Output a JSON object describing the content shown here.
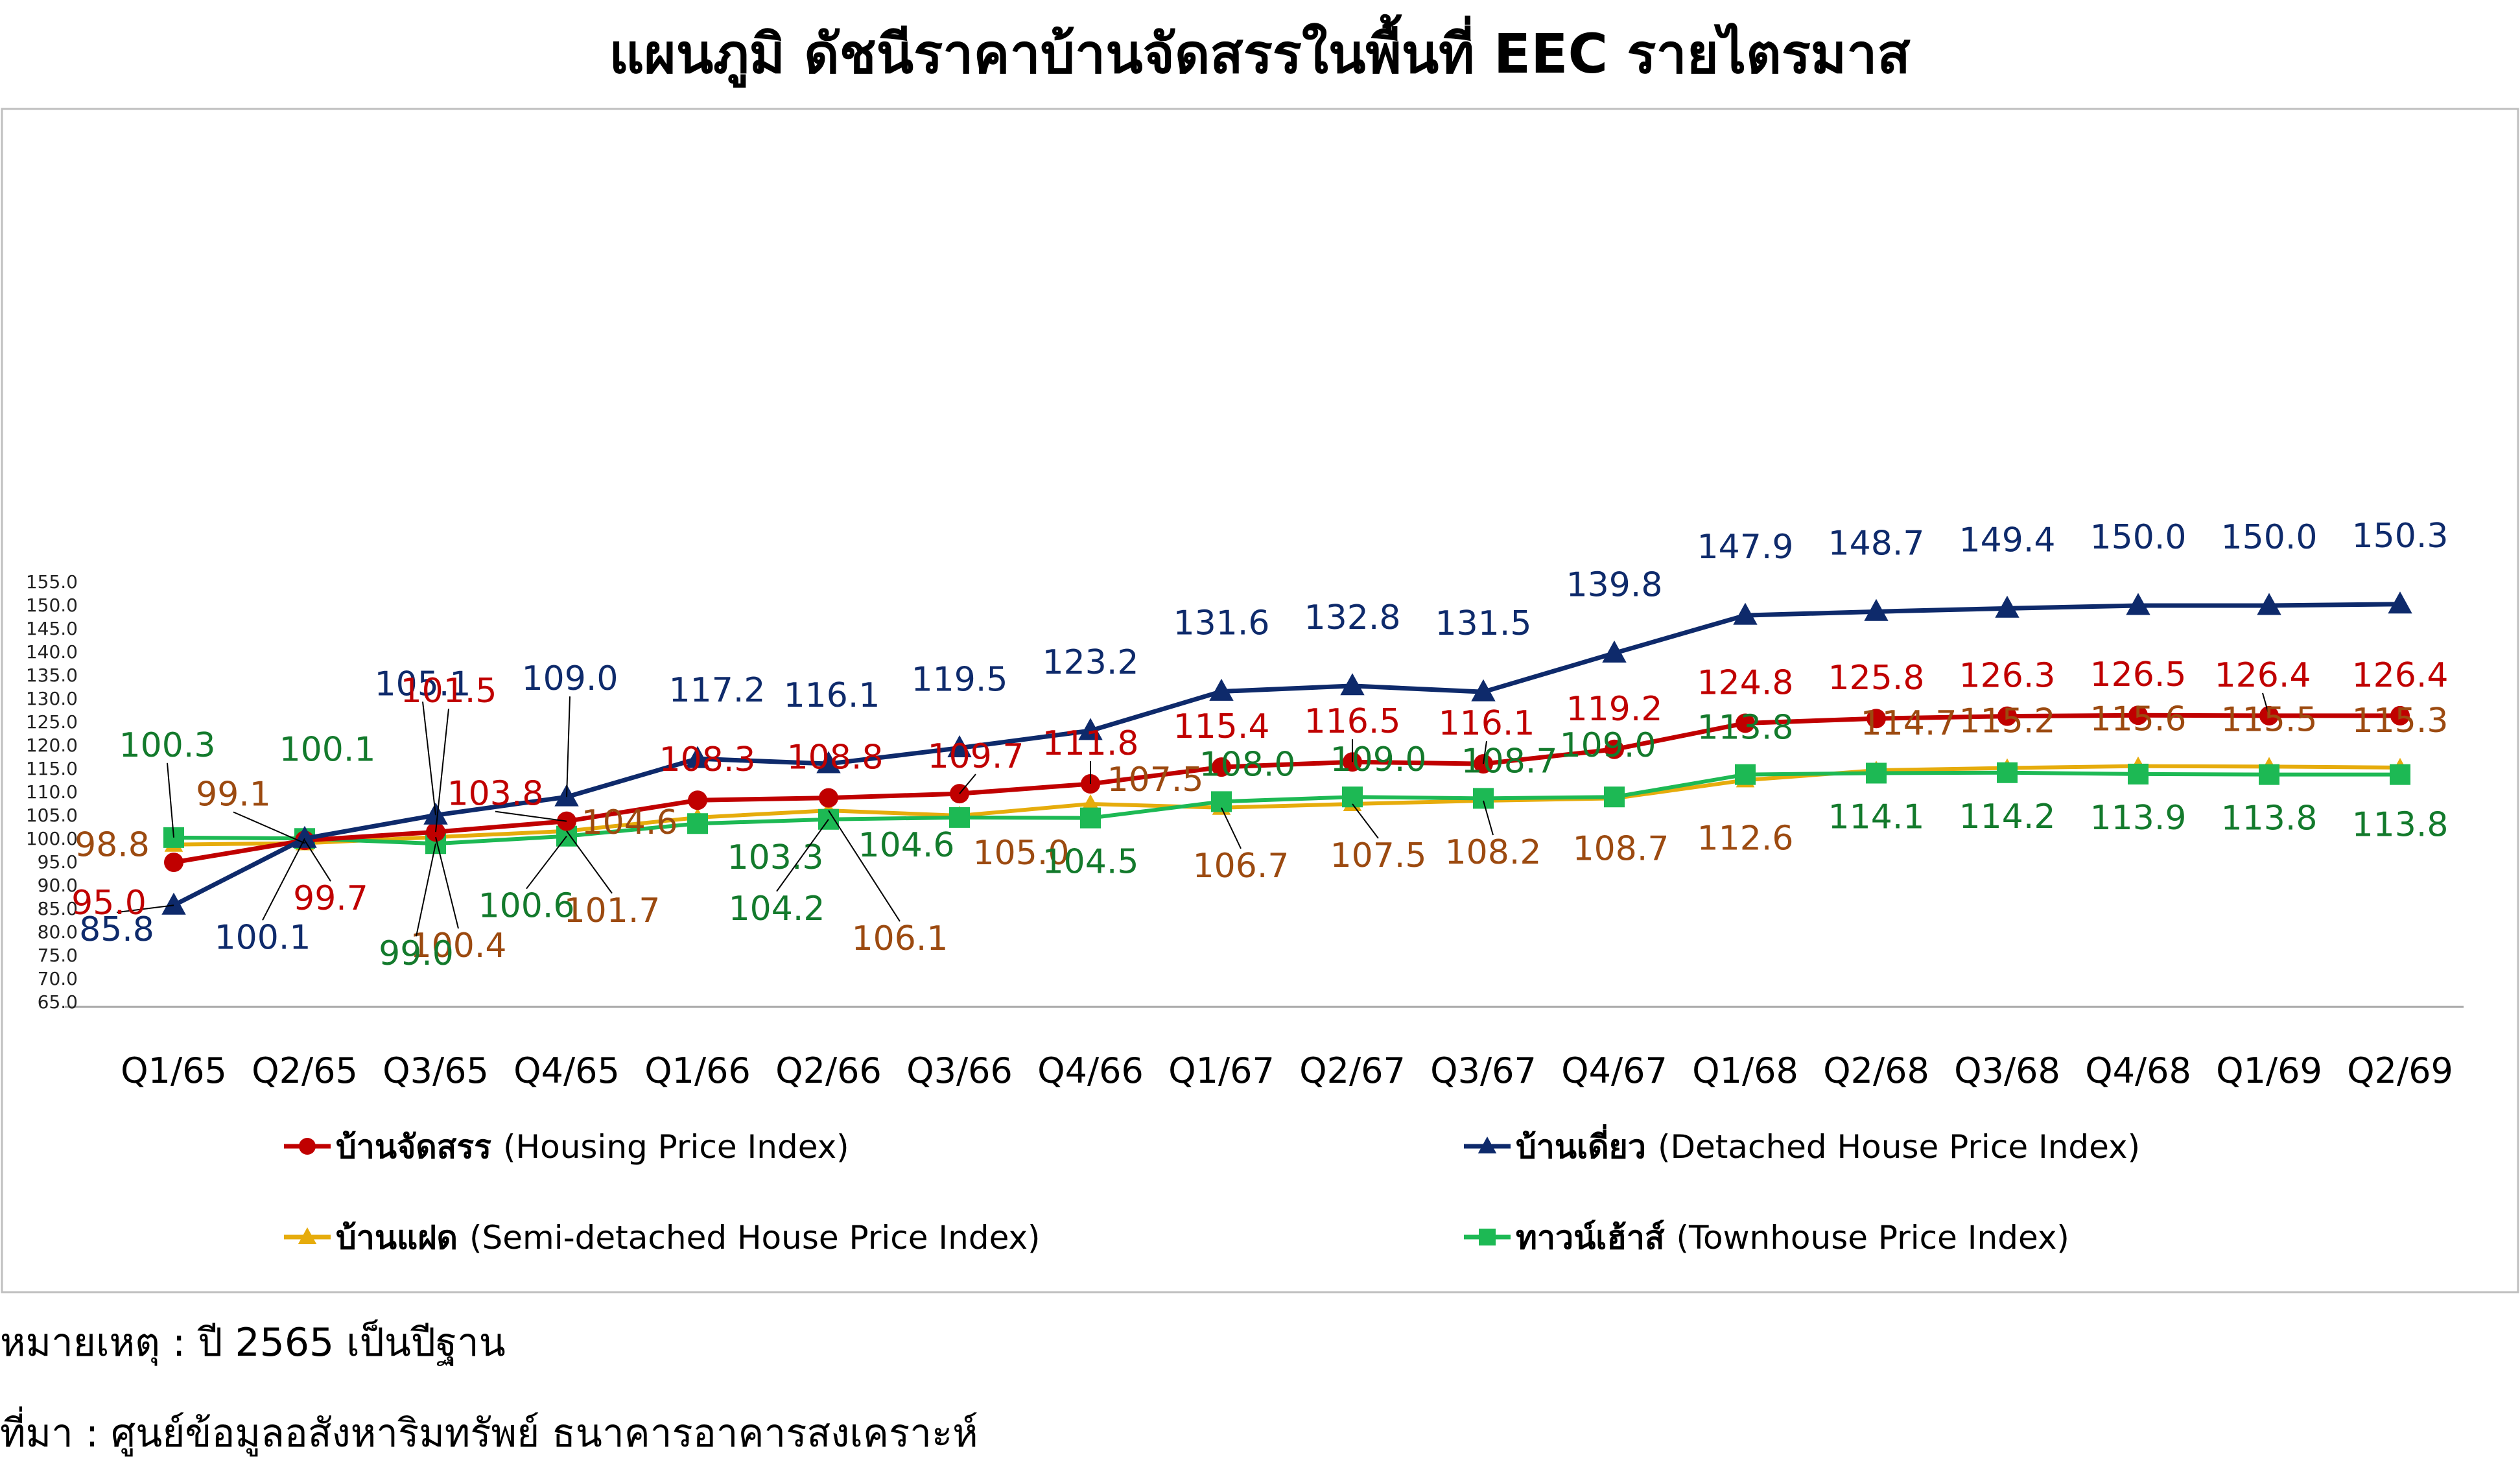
{
  "chart_data": {
    "type": "line",
    "title": "แผนภูมิ ดัชนีราคาบ้านจัดสรรในพื้นที่ EEC รายไตรมาส",
    "categories": [
      "Q1/65",
      "Q2/65",
      "Q3/65",
      "Q4/65",
      "Q1/66",
      "Q2/66",
      "Q3/66",
      "Q4/66",
      "Q1/67",
      "Q2/67",
      "Q3/67",
      "Q4/67",
      "Q1/68",
      "Q2/68",
      "Q3/68",
      "Q4/68",
      "Q1/69",
      "Q2/69"
    ],
    "y_ticks": [
      "65.0",
      "70.0",
      "75.0",
      "80.0",
      "85.0",
      "90.0",
      "95.0",
      "100.0",
      "105.0",
      "110.0",
      "115.0",
      "120.0",
      "125.0",
      "130.0",
      "135.0",
      "140.0",
      "145.0",
      "150.0",
      "155.0"
    ],
    "ylim": [
      65,
      155
    ],
    "grid": false,
    "legend_position": "bottom",
    "series": [
      {
        "name": "บ้านจัดสรร",
        "name_en": "(Housing Price Index)",
        "color": "#c00000",
        "label_color": "#c00000",
        "marker": "circle",
        "values": [
          95.0,
          99.7,
          101.5,
          103.8,
          108.3,
          108.8,
          109.7,
          111.8,
          115.4,
          116.5,
          116.1,
          119.2,
          124.8,
          125.8,
          126.3,
          126.5,
          126.4,
          126.4
        ],
        "labels": [
          "95.0",
          "99.7",
          "101.5",
          "103.8",
          "108.3",
          "108.8",
          "109.7",
          "111.8",
          "115.4",
          "116.5",
          "116.1",
          "119.2",
          "124.8",
          "125.8",
          "126.3",
          "126.5",
          "126.4",
          "126.4"
        ]
      },
      {
        "name": "บ้านเดี่ยว",
        "name_en": "(Detached House Price Index)",
        "color": "#0e2a6b",
        "label_color": "#0e2a6b",
        "marker": "triangle",
        "values": [
          85.8,
          100.1,
          105.1,
          109.0,
          117.2,
          116.1,
          119.5,
          123.2,
          131.6,
          132.8,
          131.5,
          139.8,
          147.9,
          148.7,
          149.4,
          150.0,
          150.0,
          150.3
        ],
        "labels": [
          "85.8",
          "100.1",
          "105.1",
          "109.0",
          "117.2",
          "116.1",
          "119.5",
          "123.2",
          "131.6",
          "132.8",
          "131.5",
          "139.8",
          "147.9",
          "148.7",
          "149.4",
          "150.0",
          "150.0",
          "150.3"
        ]
      },
      {
        "name": "บ้านแฝด",
        "name_en": "(Semi-detached House Price Index)",
        "color": "#e6ac0c",
        "label_color": "#9c4a10",
        "marker": "triangle",
        "values": [
          98.8,
          99.1,
          100.4,
          101.7,
          104.6,
          106.1,
          105.0,
          107.5,
          106.7,
          107.5,
          108.2,
          108.7,
          112.6,
          114.7,
          115.2,
          115.6,
          115.5,
          115.3
        ],
        "labels": [
          "98.8",
          "99.1",
          "100.4",
          "101.7",
          "104.6",
          "106.1",
          "105.0",
          "107.5",
          "106.7",
          "107.5",
          "108.2",
          "108.7",
          "112.6",
          "114.7",
          "115.2",
          "115.6",
          "115.5",
          "115.3"
        ]
      },
      {
        "name": "ทาวน์เฮ้าส์",
        "name_en": "(Townhouse Price Index)",
        "color": "#1db954",
        "label_color": "#137a2c",
        "marker": "square",
        "values": [
          100.3,
          100.1,
          99.0,
          100.6,
          103.3,
          104.2,
          104.6,
          104.5,
          108.0,
          109.0,
          108.7,
          109.0,
          113.8,
          114.1,
          114.2,
          113.9,
          113.8,
          113.8
        ],
        "labels": [
          "100.3",
          "100.1",
          "99.0",
          "100.6",
          "103.3",
          "104.2",
          "104.6",
          "104.5",
          "108.0",
          "109.0",
          "108.7",
          "109.0",
          "113.8",
          "114.1",
          "114.2",
          "113.9",
          "113.8",
          "113.8"
        ]
      }
    ]
  },
  "footnotes": {
    "note": "หมายเหตุ : ปี 2565 เป็นปีฐาน",
    "source": "ที่มา : ศูนย์ข้อมูลอสังหาริมทรัพย์ ธนาคารอาคารสงเคราะห์"
  }
}
